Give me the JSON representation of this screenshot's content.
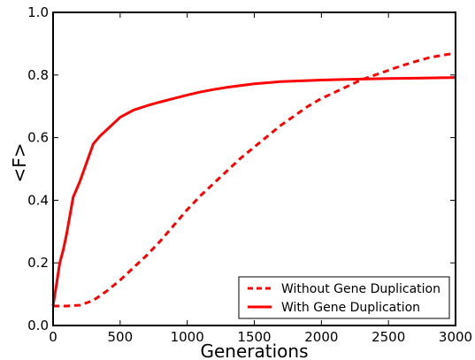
{
  "chart_data": {
    "type": "line",
    "xlabel": "Generations",
    "ylabel": "<F>",
    "xlim": [
      0,
      3000
    ],
    "ylim": [
      0.0,
      1.0
    ],
    "x_ticks": [
      0,
      500,
      1000,
      1500,
      2000,
      2500,
      3000
    ],
    "x_tick_labels": [
      "0",
      "500",
      "1000",
      "1500",
      "2000",
      "2500",
      "3000"
    ],
    "y_ticks": [
      0.0,
      0.2,
      0.4,
      0.6,
      0.8,
      1.0
    ],
    "y_tick_labels": [
      "0.0",
      "0.2",
      "0.4",
      "0.6",
      "0.8",
      "1.0"
    ],
    "grid": false,
    "legend_position": "bottom-right",
    "series": [
      {
        "name": "Without Gene Duplication",
        "color": "#ff0000",
        "style": "dashed",
        "x": [
          0,
          100,
          200,
          300,
          400,
          500,
          600,
          700,
          800,
          900,
          1000,
          1100,
          1200,
          1300,
          1400,
          1500,
          1600,
          1700,
          1800,
          1900,
          2000,
          2100,
          2200,
          2300,
          2400,
          2500,
          2600,
          2700,
          2800,
          2900,
          3000
        ],
        "y": [
          0.062,
          0.062,
          0.065,
          0.08,
          0.11,
          0.145,
          0.185,
          0.225,
          0.27,
          0.32,
          0.37,
          0.415,
          0.455,
          0.495,
          0.535,
          0.57,
          0.605,
          0.64,
          0.67,
          0.7,
          0.725,
          0.745,
          0.765,
          0.785,
          0.8,
          0.815,
          0.83,
          0.843,
          0.855,
          0.863,
          0.87
        ]
      },
      {
        "name": "With Gene Duplication",
        "color": "#ff0000",
        "style": "solid",
        "x": [
          0,
          25,
          50,
          75,
          100,
          125,
          150,
          200,
          250,
          300,
          350,
          400,
          450,
          500,
          600,
          700,
          800,
          900,
          1000,
          1100,
          1200,
          1300,
          1500,
          1700,
          2000,
          2300,
          2500,
          2700,
          3000
        ],
        "y": [
          0.063,
          0.13,
          0.2,
          0.24,
          0.29,
          0.35,
          0.41,
          0.46,
          0.52,
          0.58,
          0.605,
          0.625,
          0.645,
          0.665,
          0.688,
          0.702,
          0.714,
          0.725,
          0.736,
          0.746,
          0.754,
          0.761,
          0.772,
          0.779,
          0.784,
          0.787,
          0.789,
          0.79,
          0.792
        ]
      }
    ]
  }
}
